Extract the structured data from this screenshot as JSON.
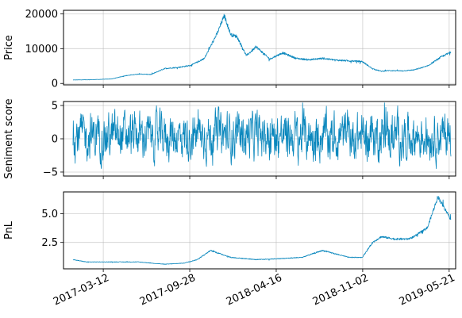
{
  "chart_data": {
    "type": "line",
    "layout": "3 stacked subplots sharing a date x-axis",
    "colors": {
      "line": "#0a87bd",
      "grid": "#b0b0b0",
      "axes": "#000000"
    },
    "x_axis": {
      "type": "date",
      "range": [
        "2016-12-10",
        "2019-06-05"
      ],
      "ticks": [
        "2017-03-12",
        "2017-09-28",
        "2018-04-16",
        "2018-11-02",
        "2019-05-21"
      ],
      "tick_label_rotation_deg": 25,
      "grid": true
    },
    "panels": [
      {
        "ylabel": "Price",
        "ylim": [
          -400,
          21000
        ],
        "yticks": [
          0,
          10000,
          20000
        ],
        "yticklabels": [
          "0",
          "10000",
          "20000"
        ],
        "grid": true,
        "series": {
          "x": [
            "2017-01-01",
            "2017-02-01",
            "2017-03-01",
            "2017-04-01",
            "2017-05-01",
            "2017-06-01",
            "2017-07-01",
            "2017-08-01",
            "2017-09-01",
            "2017-10-01",
            "2017-11-01",
            "2017-12-01",
            "2017-12-17",
            "2018-01-01",
            "2018-01-15",
            "2018-02-06",
            "2018-03-01",
            "2018-04-01",
            "2018-05-01",
            "2018-06-01",
            "2018-07-01",
            "2018-08-01",
            "2018-09-01",
            "2018-10-01",
            "2018-11-01",
            "2018-11-25",
            "2018-12-15",
            "2019-01-01",
            "2019-02-01",
            "2019-03-01",
            "2019-04-01",
            "2019-05-01",
            "2019-05-25"
          ],
          "y": [
            1000,
            1050,
            1150,
            1300,
            2200,
            2700,
            2600,
            4300,
            4600,
            5200,
            7200,
            14500,
            19500,
            14000,
            13500,
            8000,
            10500,
            7000,
            8800,
            7200,
            6800,
            7200,
            6700,
            6500,
            6300,
            4200,
            3500,
            3700,
            3600,
            3900,
            5000,
            7500,
            9000
          ]
        }
      },
      {
        "ylabel": "Seniment score",
        "ylim": [
          -5.6,
          5.6
        ],
        "yticks": [
          -5,
          0,
          5
        ],
        "yticklabels": [
          "−5",
          "0",
          "5"
        ],
        "grid": true,
        "series": {
          "description": "high-frequency noisy oscillation between about -5 and 5",
          "x_range": [
            "2017-01-01",
            "2019-05-25"
          ],
          "approx_mean": 0.5,
          "approx_amplitude": 5
        }
      },
      {
        "ylabel": "PnL",
        "ylim": [
          0.2,
          6.9
        ],
        "yticks": [
          2.5,
          5.0
        ],
        "yticklabels": [
          "2.5",
          "5.0"
        ],
        "grid": true,
        "series": {
          "x": [
            "2017-01-01",
            "2017-02-01",
            "2017-04-01",
            "2017-06-01",
            "2017-08-01",
            "2017-09-15",
            "2017-10-15",
            "2017-11-15",
            "2018-01-01",
            "2018-03-01",
            "2018-05-01",
            "2018-06-15",
            "2018-08-01",
            "2018-10-01",
            "2018-11-01",
            "2018-11-25",
            "2018-12-15",
            "2019-01-15",
            "2019-02-15",
            "2019-03-01",
            "2019-04-01",
            "2019-04-25",
            "2019-05-05",
            "2019-05-15",
            "2019-05-25"
          ],
          "y": [
            1.0,
            0.8,
            0.8,
            0.8,
            0.6,
            0.7,
            1.0,
            1.8,
            1.2,
            1.0,
            1.1,
            1.2,
            1.8,
            1.2,
            1.2,
            2.5,
            3.0,
            2.8,
            2.8,
            3.0,
            3.8,
            6.5,
            5.8,
            5.2,
            4.5
          ]
        }
      }
    ]
  }
}
